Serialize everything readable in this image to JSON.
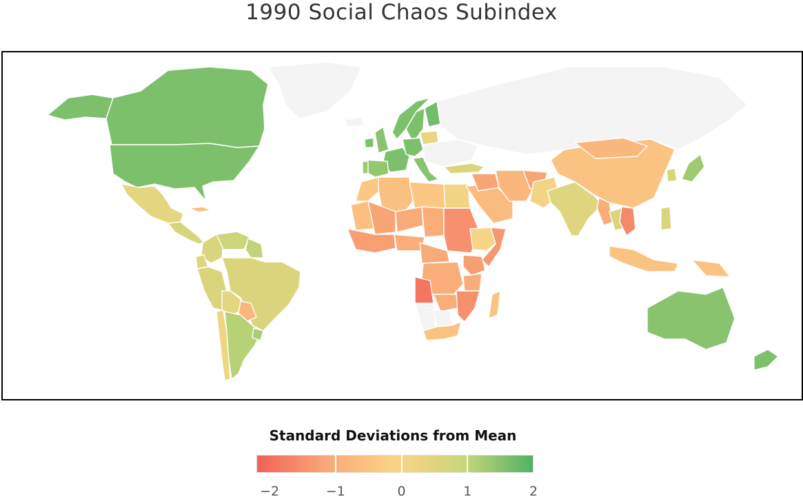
{
  "title": "1990 Social Chaos Subindex",
  "legend": {
    "title": "Standard Deviations from Mean",
    "ticks": [
      {
        "value": -2,
        "label": "−2"
      },
      {
        "value": -1,
        "label": "−1"
      },
      {
        "value": 0,
        "label": "0"
      },
      {
        "value": 1,
        "label": "1"
      },
      {
        "value": 2,
        "label": "2"
      }
    ],
    "range": [
      -2.2,
      2.0
    ],
    "colors": [
      "#f26157",
      "#f8a878",
      "#fdd486",
      "#c8d679",
      "#4fb264"
    ],
    "no_data_color": "#f4f4f4"
  },
  "regions": [
    {
      "name": "Canada",
      "value": 1.6
    },
    {
      "name": "Alaska (USA)",
      "value": 1.6
    },
    {
      "name": "United States",
      "value": 1.6
    },
    {
      "name": "Greenland",
      "value": null
    },
    {
      "name": "Mexico",
      "value": 0.4
    },
    {
      "name": "Central America",
      "value": 0.7
    },
    {
      "name": "Cuba",
      "value": -0.6
    },
    {
      "name": "Colombia",
      "value": 0.6
    },
    {
      "name": "Venezuela",
      "value": 0.9
    },
    {
      "name": "Guyana",
      "value": 1.0
    },
    {
      "name": "Ecuador",
      "value": 0.5
    },
    {
      "name": "Peru",
      "value": 0.6
    },
    {
      "name": "Brazil",
      "value": 0.6
    },
    {
      "name": "Bolivia",
      "value": 0.4
    },
    {
      "name": "Paraguay",
      "value": -0.8
    },
    {
      "name": "Chile",
      "value": 0.2
    },
    {
      "name": "Argentina",
      "value": 1.1
    },
    {
      "name": "Uruguay",
      "value": 1.2
    },
    {
      "name": "Iceland",
      "value": null
    },
    {
      "name": "Norway",
      "value": 1.6
    },
    {
      "name": "Sweden",
      "value": 1.6
    },
    {
      "name": "Finland",
      "value": 1.7
    },
    {
      "name": "United Kingdom",
      "value": 1.5
    },
    {
      "name": "Ireland",
      "value": 1.6
    },
    {
      "name": "France",
      "value": 1.6
    },
    {
      "name": "Spain",
      "value": 1.4
    },
    {
      "name": "Portugal",
      "value": 1.3
    },
    {
      "name": "Germany",
      "value": 1.6
    },
    {
      "name": "Italy",
      "value": 1.5
    },
    {
      "name": "Poland",
      "value": 0.3
    },
    {
      "name": "Eastern Europe",
      "value": null
    },
    {
      "name": "Russia",
      "value": null
    },
    {
      "name": "Turkey",
      "value": 0.6
    },
    {
      "name": "Morocco",
      "value": -0.4
    },
    {
      "name": "Algeria",
      "value": -0.6
    },
    {
      "name": "Libya",
      "value": -0.4
    },
    {
      "name": "Egypt",
      "value": 0.1
    },
    {
      "name": "Mauritania",
      "value": -0.6
    },
    {
      "name": "Mali",
      "value": -1.2
    },
    {
      "name": "Niger",
      "value": -1.1
    },
    {
      "name": "Chad",
      "value": -1.0
    },
    {
      "name": "Sudan",
      "value": -1.5
    },
    {
      "name": "Ethiopia",
      "value": 0.0
    },
    {
      "name": "Somalia",
      "value": -1.4
    },
    {
      "name": "West Africa",
      "value": -1.3
    },
    {
      "name": "Nigeria",
      "value": -1.0
    },
    {
      "name": "Central Africa",
      "value": -1.1
    },
    {
      "name": "DR Congo",
      "value": -1.0
    },
    {
      "name": "Kenya",
      "value": -1.3
    },
    {
      "name": "Tanzania",
      "value": -1.0
    },
    {
      "name": "Angola",
      "value": -1.9
    },
    {
      "name": "Zambia",
      "value": -1.0
    },
    {
      "name": "Mozambique",
      "value": -1.5
    },
    {
      "name": "Namibia",
      "value": null
    },
    {
      "name": "Botswana",
      "value": null
    },
    {
      "name": "South Africa",
      "value": -0.5
    },
    {
      "name": "Madagascar",
      "value": -0.5
    },
    {
      "name": "Saudi Arabia",
      "value": -0.7
    },
    {
      "name": "Iraq",
      "value": -1.2
    },
    {
      "name": "Iran",
      "value": -0.8
    },
    {
      "name": "Afghanistan",
      "value": -1.2
    },
    {
      "name": "Pakistan",
      "value": 0.1
    },
    {
      "name": "India",
      "value": 0.5
    },
    {
      "name": "China",
      "value": -0.5
    },
    {
      "name": "Mongolia",
      "value": -0.8
    },
    {
      "name": "Japan",
      "value": 1.3
    },
    {
      "name": "Korea",
      "value": 0.7
    },
    {
      "name": "Myanmar",
      "value": -1.0
    },
    {
      "name": "Thailand",
      "value": 0.6
    },
    {
      "name": "Vietnam",
      "value": -1.6
    },
    {
      "name": "Philippines",
      "value": 0.6
    },
    {
      "name": "Indonesia",
      "value": -0.5
    },
    {
      "name": "Papua New Guinea",
      "value": -0.5
    },
    {
      "name": "Australia",
      "value": 1.5
    },
    {
      "name": "New Zealand",
      "value": 1.6
    }
  ]
}
